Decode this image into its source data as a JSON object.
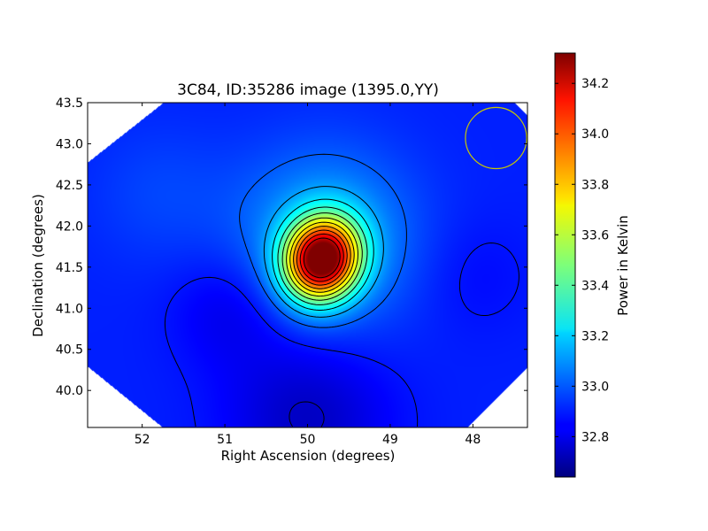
{
  "chart_data": {
    "type": "heatmap",
    "title": "3C84, ID:35286 image (1395.0,YY)",
    "xlabel": "Right Ascension (degrees)",
    "ylabel": "Declination (degrees)",
    "xlim": [
      52.66,
      47.34
    ],
    "ylim": [
      39.55,
      43.5
    ],
    "x_ticks": [
      52,
      51,
      50,
      49,
      48
    ],
    "y_ticks": [
      40.0,
      40.5,
      41.0,
      41.5,
      42.0,
      42.5,
      43.0,
      43.5
    ],
    "x_tick_labels": [
      "52",
      "51",
      "50",
      "49",
      "48"
    ],
    "y_tick_labels": [
      "40.0",
      "40.5",
      "41.0",
      "41.5",
      "42.0",
      "42.5",
      "43.0",
      "43.5"
    ],
    "colorbar": {
      "label": "Power in Kelvin",
      "range": [
        32.64,
        34.32
      ],
      "ticks": [
        32.8,
        33.0,
        33.2,
        33.4,
        33.6,
        33.8,
        34.0,
        34.2
      ],
      "tick_labels": [
        "32.8",
        "33.0",
        "33.2",
        "33.4",
        "33.6",
        "33.8",
        "34.0",
        "34.2"
      ],
      "colormap": "jet"
    },
    "source_peak": {
      "ra": 49.83,
      "dec": 41.6,
      "value": 34.3
    },
    "background_level": 32.9,
    "contour_levels": [
      32.76,
      32.88,
      33.0,
      33.12,
      33.24,
      33.36,
      33.48,
      33.6,
      33.72,
      33.84,
      33.96,
      34.08,
      34.2
    ],
    "beam_circle": {
      "ra": 47.72,
      "dec": 43.07,
      "radius_deg": 0.37,
      "color": "#c8c800"
    }
  }
}
